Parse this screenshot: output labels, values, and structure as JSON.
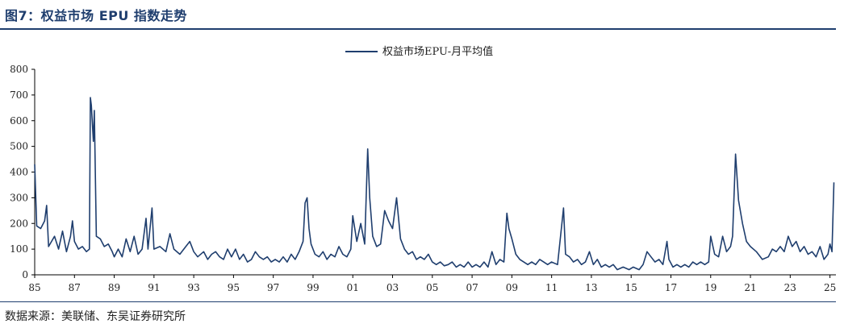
{
  "header": {
    "title": "图7：权益市场 EPU 指数走势"
  },
  "footer": {
    "source": "数据来源：美联储、东吴证券研究所"
  },
  "chart_data": {
    "type": "line",
    "title": "",
    "xlabel": "",
    "ylabel": "",
    "ylim": [
      0,
      800
    ],
    "yticks": [
      0,
      100,
      200,
      300,
      400,
      500,
      600,
      700,
      800
    ],
    "ytick_labels": [
      "0",
      "100",
      "200",
      "300",
      "400",
      "500",
      "600",
      "700",
      "800"
    ],
    "xlim": [
      1985.0,
      2025.3
    ],
    "xticks": [
      1985,
      1987,
      1989,
      1991,
      1993,
      1995,
      1997,
      1999,
      2001,
      2003,
      2005,
      2007,
      2009,
      2011,
      2013,
      2015,
      2017,
      2019,
      2021,
      2023,
      2025
    ],
    "xtick_labels": [
      "85",
      "87",
      "89",
      "91",
      "93",
      "95",
      "97",
      "99",
      "01",
      "03",
      "05",
      "07",
      "09",
      "11",
      "13",
      "15",
      "17",
      "19",
      "21",
      "23",
      "25"
    ],
    "legend": {
      "position": "top-center"
    },
    "colors": {
      "line": "#1f3e6e",
      "axis": "#000000",
      "rule": "#1f3e6e"
    },
    "series": [
      {
        "name": "权益市场EPU-月平均值",
        "points": [
          [
            1985.0,
            430
          ],
          [
            1985.1,
            190
          ],
          [
            1985.3,
            180
          ],
          [
            1985.5,
            210
          ],
          [
            1985.6,
            270
          ],
          [
            1985.7,
            110
          ],
          [
            1986.0,
            150
          ],
          [
            1986.2,
            100
          ],
          [
            1986.4,
            170
          ],
          [
            1986.6,
            90
          ],
          [
            1986.8,
            150
          ],
          [
            1986.9,
            210
          ],
          [
            1987.0,
            130
          ],
          [
            1987.2,
            100
          ],
          [
            1987.4,
            110
          ],
          [
            1987.6,
            90
          ],
          [
            1987.75,
            100
          ],
          [
            1987.8,
            690
          ],
          [
            1987.85,
            660
          ],
          [
            1987.95,
            520
          ],
          [
            1988.0,
            640
          ],
          [
            1988.1,
            150
          ],
          [
            1988.3,
            140
          ],
          [
            1988.5,
            110
          ],
          [
            1988.7,
            120
          ],
          [
            1988.9,
            90
          ],
          [
            1989.0,
            70
          ],
          [
            1989.2,
            100
          ],
          [
            1989.4,
            70
          ],
          [
            1989.6,
            140
          ],
          [
            1989.8,
            90
          ],
          [
            1990.0,
            150
          ],
          [
            1990.2,
            80
          ],
          [
            1990.4,
            100
          ],
          [
            1990.6,
            220
          ],
          [
            1990.7,
            100
          ],
          [
            1990.9,
            260
          ],
          [
            1991.0,
            100
          ],
          [
            1991.3,
            110
          ],
          [
            1991.6,
            90
          ],
          [
            1991.8,
            160
          ],
          [
            1992.0,
            100
          ],
          [
            1992.3,
            80
          ],
          [
            1992.6,
            110
          ],
          [
            1992.8,
            130
          ],
          [
            1993.0,
            90
          ],
          [
            1993.2,
            70
          ],
          [
            1993.5,
            90
          ],
          [
            1993.7,
            60
          ],
          [
            1993.9,
            80
          ],
          [
            1994.1,
            90
          ],
          [
            1994.3,
            70
          ],
          [
            1994.5,
            60
          ],
          [
            1994.7,
            100
          ],
          [
            1994.9,
            70
          ],
          [
            1995.1,
            100
          ],
          [
            1995.3,
            60
          ],
          [
            1995.5,
            80
          ],
          [
            1995.7,
            50
          ],
          [
            1995.9,
            60
          ],
          [
            1996.1,
            90
          ],
          [
            1996.3,
            70
          ],
          [
            1996.5,
            60
          ],
          [
            1996.7,
            70
          ],
          [
            1996.9,
            50
          ],
          [
            1997.1,
            60
          ],
          [
            1997.3,
            50
          ],
          [
            1997.5,
            70
          ],
          [
            1997.7,
            50
          ],
          [
            1997.9,
            80
          ],
          [
            1998.1,
            60
          ],
          [
            1998.3,
            90
          ],
          [
            1998.5,
            130
          ],
          [
            1998.6,
            280
          ],
          [
            1998.7,
            300
          ],
          [
            1998.8,
            180
          ],
          [
            1998.9,
            120
          ],
          [
            1999.1,
            80
          ],
          [
            1999.3,
            70
          ],
          [
            1999.5,
            90
          ],
          [
            1999.7,
            60
          ],
          [
            1999.9,
            80
          ],
          [
            2000.1,
            70
          ],
          [
            2000.3,
            110
          ],
          [
            2000.5,
            80
          ],
          [
            2000.7,
            70
          ],
          [
            2000.9,
            100
          ],
          [
            2001.0,
            230
          ],
          [
            2001.2,
            130
          ],
          [
            2001.4,
            200
          ],
          [
            2001.6,
            120
          ],
          [
            2001.75,
            490
          ],
          [
            2001.85,
            300
          ],
          [
            2002.0,
            150
          ],
          [
            2002.2,
            110
          ],
          [
            2002.4,
            120
          ],
          [
            2002.6,
            250
          ],
          [
            2002.8,
            210
          ],
          [
            2003.0,
            180
          ],
          [
            2003.2,
            300
          ],
          [
            2003.4,
            140
          ],
          [
            2003.6,
            100
          ],
          [
            2003.8,
            80
          ],
          [
            2004.0,
            90
          ],
          [
            2004.2,
            60
          ],
          [
            2004.4,
            70
          ],
          [
            2004.6,
            60
          ],
          [
            2004.8,
            80
          ],
          [
            2005.0,
            50
          ],
          [
            2005.2,
            40
          ],
          [
            2005.4,
            50
          ],
          [
            2005.6,
            35
          ],
          [
            2005.8,
            40
          ],
          [
            2006.0,
            50
          ],
          [
            2006.2,
            30
          ],
          [
            2006.4,
            40
          ],
          [
            2006.6,
            30
          ],
          [
            2006.8,
            50
          ],
          [
            2007.0,
            30
          ],
          [
            2007.2,
            40
          ],
          [
            2007.4,
            30
          ],
          [
            2007.6,
            50
          ],
          [
            2007.8,
            30
          ],
          [
            2008.0,
            90
          ],
          [
            2008.2,
            40
          ],
          [
            2008.4,
            60
          ],
          [
            2008.6,
            50
          ],
          [
            2008.75,
            240
          ],
          [
            2008.85,
            180
          ],
          [
            2009.0,
            140
          ],
          [
            2009.2,
            80
          ],
          [
            2009.4,
            60
          ],
          [
            2009.6,
            50
          ],
          [
            2009.8,
            40
          ],
          [
            2010.0,
            50
          ],
          [
            2010.2,
            40
          ],
          [
            2010.4,
            60
          ],
          [
            2010.6,
            50
          ],
          [
            2010.8,
            40
          ],
          [
            2011.0,
            50
          ],
          [
            2011.3,
            40
          ],
          [
            2011.6,
            260
          ],
          [
            2011.7,
            80
          ],
          [
            2011.9,
            70
          ],
          [
            2012.1,
            50
          ],
          [
            2012.3,
            60
          ],
          [
            2012.5,
            40
          ],
          [
            2012.7,
            50
          ],
          [
            2012.9,
            90
          ],
          [
            2013.1,
            40
          ],
          [
            2013.3,
            60
          ],
          [
            2013.5,
            30
          ],
          [
            2013.7,
            40
          ],
          [
            2013.9,
            30
          ],
          [
            2014.1,
            40
          ],
          [
            2014.3,
            20
          ],
          [
            2014.6,
            30
          ],
          [
            2014.9,
            20
          ],
          [
            2015.1,
            30
          ],
          [
            2015.4,
            20
          ],
          [
            2015.6,
            40
          ],
          [
            2015.8,
            90
          ],
          [
            2016.0,
            70
          ],
          [
            2016.2,
            50
          ],
          [
            2016.4,
            60
          ],
          [
            2016.6,
            40
          ],
          [
            2016.8,
            130
          ],
          [
            2016.9,
            60
          ],
          [
            2017.1,
            30
          ],
          [
            2017.3,
            40
          ],
          [
            2017.5,
            30
          ],
          [
            2017.7,
            40
          ],
          [
            2017.9,
            30
          ],
          [
            2018.1,
            50
          ],
          [
            2018.3,
            40
          ],
          [
            2018.5,
            50
          ],
          [
            2018.7,
            40
          ],
          [
            2018.9,
            50
          ],
          [
            2019.0,
            150
          ],
          [
            2019.2,
            80
          ],
          [
            2019.4,
            70
          ],
          [
            2019.6,
            150
          ],
          [
            2019.8,
            90
          ],
          [
            2020.0,
            110
          ],
          [
            2020.1,
            150
          ],
          [
            2020.25,
            470
          ],
          [
            2020.4,
            290
          ],
          [
            2020.6,
            200
          ],
          [
            2020.8,
            130
          ],
          [
            2021.0,
            110
          ],
          [
            2021.3,
            90
          ],
          [
            2021.6,
            60
          ],
          [
            2021.9,
            70
          ],
          [
            2022.1,
            100
          ],
          [
            2022.3,
            90
          ],
          [
            2022.5,
            110
          ],
          [
            2022.7,
            90
          ],
          [
            2022.9,
            150
          ],
          [
            2023.1,
            110
          ],
          [
            2023.3,
            130
          ],
          [
            2023.5,
            90
          ],
          [
            2023.7,
            110
          ],
          [
            2023.9,
            80
          ],
          [
            2024.1,
            90
          ],
          [
            2024.3,
            70
          ],
          [
            2024.5,
            110
          ],
          [
            2024.7,
            60
          ],
          [
            2024.9,
            80
          ],
          [
            2025.0,
            120
          ],
          [
            2025.1,
            90
          ],
          [
            2025.2,
            360
          ]
        ]
      }
    ]
  }
}
